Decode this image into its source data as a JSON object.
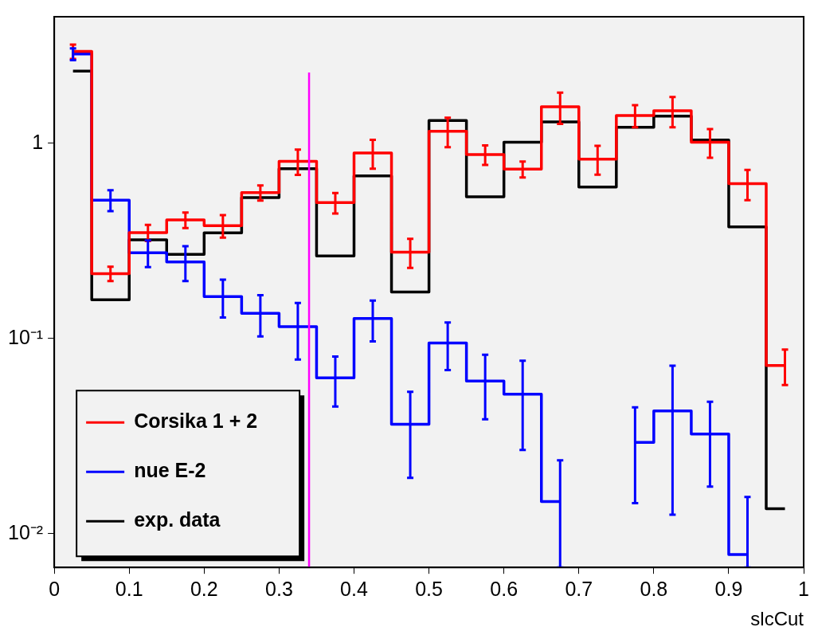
{
  "chart_data": {
    "type": "step",
    "xlabel": "slcCut",
    "x": [
      0.025,
      0.075,
      0.125,
      0.175,
      0.225,
      0.275,
      0.325,
      0.375,
      0.425,
      0.475,
      0.525,
      0.575,
      0.625,
      0.675,
      0.725,
      0.775,
      0.825,
      0.875,
      0.925,
      0.975
    ],
    "series": [
      {
        "name": "Corsika 1 + 2",
        "color": "#ff0000",
        "values": [
          2.96,
          0.215,
          0.349,
          0.405,
          0.379,
          0.559,
          0.809,
          0.497,
          0.892,
          0.277,
          1.155,
          0.876,
          0.738,
          1.54,
          0.831,
          1.39,
          1.47,
          1.015,
          0.622,
          0.0727
        ],
        "errors": [
          0.25,
          0.018,
          0.033,
          0.037,
          0.05,
          0.05,
          0.12,
          0.06,
          0.15,
          0.047,
          0.2,
          0.1,
          0.07,
          0.28,
          0.14,
          0.18,
          0.26,
          0.17,
          0.11,
          0.015
        ]
      },
      {
        "name": "nue E-2",
        "color": "#0000ff",
        "values": [
          2.87,
          0.512,
          0.275,
          0.247,
          0.164,
          0.1345,
          0.115,
          0.0628,
          0.1265,
          0.0363,
          0.0948,
          0.0605,
          0.0518,
          0.0146,
          null,
          0.0293,
          0.0425,
          0.0324,
          0.0078,
          null
        ],
        "errors": [
          0.2,
          0.063,
          0.043,
          0.05,
          0.036,
          0.032,
          0.037,
          0.018,
          0.03,
          0.017,
          0.026,
          0.022,
          0.025,
          [
            0.0067,
            0.0237
          ],
          null,
          0.015,
          0.03,
          0.015,
          [
            0.0067,
            0.0154
          ],
          null
        ]
      },
      {
        "name": "exp. data",
        "color": "#000000",
        "values": [
          2.35,
          0.158,
          0.32,
          0.27,
          0.348,
          0.527,
          0.742,
          0.265,
          0.681,
          0.173,
          1.31,
          0.532,
          1.015,
          1.29,
          0.598,
          1.21,
          1.38,
          1.04,
          0.373,
          0.0134
        ]
      }
    ],
    "log": "y",
    "xlim": [
      0,
      1
    ],
    "ylim": [
      0.0067,
      4.46
    ],
    "xticks": [
      0,
      0.1,
      0.2,
      0.3,
      0.4,
      0.5,
      0.6,
      0.7,
      0.8,
      0.9,
      1
    ],
    "yticks": [
      {
        "value": 0.01,
        "label": "10⁻²"
      },
      {
        "value": 0.1,
        "label": "10⁻¹"
      },
      1
    ],
    "ref_lines": [
      {
        "axis": "x",
        "value": 0.34,
        "color": "#ff00ff"
      }
    ],
    "legend": "bottom left",
    "grid": false
  }
}
